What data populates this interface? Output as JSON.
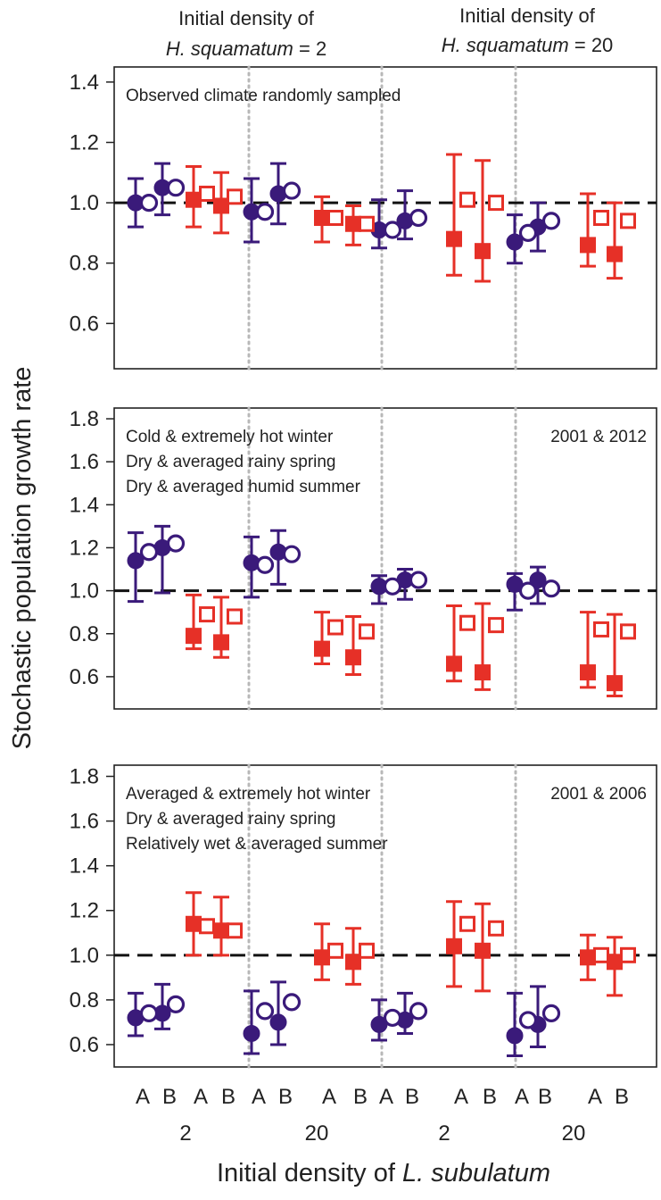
{
  "colors": {
    "observed": "#3a1a7a",
    "treatment": "#e63027",
    "sep": "#b8b8b8",
    "axis": "#222222"
  },
  "header": {
    "left_line1": "Initial density of",
    "left_line2_italic": "H. squamatum",
    "left_line2_rest": " = 2",
    "right_line1": "Initial density of",
    "right_line2_italic": "H. squamatum",
    "right_line2_rest": " = 20"
  },
  "y_axis_label": "Stochastic population growth rate",
  "x_axis_label_prefix": "Initial density of ",
  "x_axis_label_italic": "L. subulatum",
  "x_tick_letters": [
    "A",
    "B",
    "A",
    "B",
    "A",
    "B",
    "A",
    "B",
    "A",
    "B",
    "A",
    "B",
    "A",
    "B",
    "A",
    "B"
  ],
  "x_group_labels": [
    "2",
    "20",
    "2",
    "20"
  ],
  "chart_data": [
    {
      "type": "scatter",
      "panel": "top",
      "annotation_left": [
        "Observed climate randomly sampled"
      ],
      "annotation_right": "",
      "ylim": [
        0.45,
        1.45
      ],
      "yticks": [
        "0.6",
        "0.8",
        "1.0",
        "1.2",
        "1.4"
      ],
      "ytick_values": [
        0.6,
        0.8,
        1.0,
        1.2,
        1.4
      ],
      "reference_line": 1.0,
      "series": [
        {
          "key": "blue-filled-circle",
          "values": [
            1.0,
            1.05,
            0.97,
            1.03,
            0.91,
            0.94,
            0.87,
            0.92
          ],
          "lo": [
            0.92,
            0.96,
            0.87,
            0.93,
            0.85,
            0.88,
            0.8,
            0.84
          ],
          "hi": [
            1.08,
            1.13,
            1.08,
            1.13,
            1.01,
            1.04,
            0.96,
            1.0
          ]
        },
        {
          "key": "blue-open-circle",
          "values": [
            1.0,
            1.05,
            0.97,
            1.04,
            0.91,
            0.95,
            0.9,
            0.94
          ]
        },
        {
          "key": "red-filled-square",
          "values": [
            1.01,
            0.99,
            0.95,
            0.93,
            0.88,
            0.84,
            0.86,
            0.83
          ],
          "lo": [
            0.92,
            0.9,
            0.87,
            0.86,
            0.76,
            0.74,
            0.79,
            0.75
          ],
          "hi": [
            1.12,
            1.1,
            1.02,
            0.99,
            1.16,
            1.14,
            1.03,
            1.0
          ]
        },
        {
          "key": "red-open-square",
          "values": [
            1.03,
            1.02,
            0.95,
            0.93,
            1.01,
            1.0,
            0.95,
            0.94
          ]
        }
      ]
    },
    {
      "type": "scatter",
      "panel": "middle",
      "annotation_left": [
        "Cold & extremely hot winter",
        "Dry & averaged rainy spring",
        "Dry & averaged humid summer"
      ],
      "annotation_right": "2001 & 2012",
      "ylim": [
        0.45,
        1.85
      ],
      "yticks": [
        "0.6",
        "0.8",
        "1.0",
        "1.2",
        "1.4",
        "1.6",
        "1.8"
      ],
      "ytick_values": [
        0.6,
        0.8,
        1.0,
        1.2,
        1.4,
        1.6,
        1.8
      ],
      "reference_line": 1.0,
      "series": [
        {
          "key": "blue-filled-circle",
          "values": [
            1.14,
            1.2,
            1.13,
            1.18,
            1.02,
            1.05,
            1.03,
            1.05
          ],
          "lo": [
            0.95,
            0.99,
            0.97,
            1.03,
            0.94,
            0.96,
            0.91,
            0.94
          ],
          "hi": [
            1.27,
            1.3,
            1.25,
            1.28,
            1.07,
            1.1,
            1.08,
            1.11
          ]
        },
        {
          "key": "blue-open-circle",
          "values": [
            1.18,
            1.22,
            1.12,
            1.17,
            1.02,
            1.05,
            1.0,
            1.01
          ]
        },
        {
          "key": "red-filled-square",
          "values": [
            0.79,
            0.76,
            0.73,
            0.69,
            0.66,
            0.62,
            0.62,
            0.57
          ],
          "lo": [
            0.73,
            0.69,
            0.66,
            0.61,
            0.58,
            0.54,
            0.55,
            0.51
          ],
          "hi": [
            0.98,
            0.97,
            0.9,
            0.88,
            0.93,
            0.94,
            0.9,
            0.89
          ]
        },
        {
          "key": "red-open-square",
          "values": [
            0.89,
            0.88,
            0.83,
            0.81,
            0.85,
            0.84,
            0.82,
            0.81
          ]
        }
      ]
    },
    {
      "type": "scatter",
      "panel": "bottom",
      "annotation_left": [
        "Averaged & extremely hot winter",
        "Dry & averaged rainy spring",
        "Relatively wet & averaged summer"
      ],
      "annotation_right": "2001 & 2006",
      "ylim": [
        0.5,
        1.85
      ],
      "yticks": [
        "0.6",
        "0.8",
        "1.0",
        "1.2",
        "1.4",
        "1.6",
        "1.8"
      ],
      "ytick_values": [
        0.6,
        0.8,
        1.0,
        1.2,
        1.4,
        1.6,
        1.8
      ],
      "reference_line": 1.0,
      "series": [
        {
          "key": "blue-filled-circle",
          "values": [
            0.72,
            0.74,
            0.65,
            0.7,
            0.69,
            0.71,
            0.64,
            0.69
          ],
          "lo": [
            0.64,
            0.67,
            0.56,
            0.6,
            0.62,
            0.65,
            0.55,
            0.59
          ],
          "hi": [
            0.83,
            0.87,
            0.84,
            0.88,
            0.8,
            0.83,
            0.83,
            0.86
          ]
        },
        {
          "key": "blue-open-circle",
          "values": [
            0.74,
            0.78,
            0.75,
            0.79,
            0.72,
            0.75,
            0.71,
            0.74
          ]
        },
        {
          "key": "red-filled-square",
          "values": [
            1.14,
            1.11,
            0.99,
            0.97,
            1.04,
            1.02,
            0.99,
            0.97
          ],
          "lo": [
            1.0,
            1.0,
            0.89,
            0.87,
            0.86,
            0.84,
            0.89,
            0.82
          ],
          "hi": [
            1.28,
            1.26,
            1.14,
            1.12,
            1.24,
            1.23,
            1.09,
            1.08
          ]
        },
        {
          "key": "red-open-square",
          "values": [
            1.13,
            1.11,
            1.02,
            1.02,
            1.14,
            1.12,
            1.0,
            1.0
          ]
        }
      ]
    }
  ]
}
